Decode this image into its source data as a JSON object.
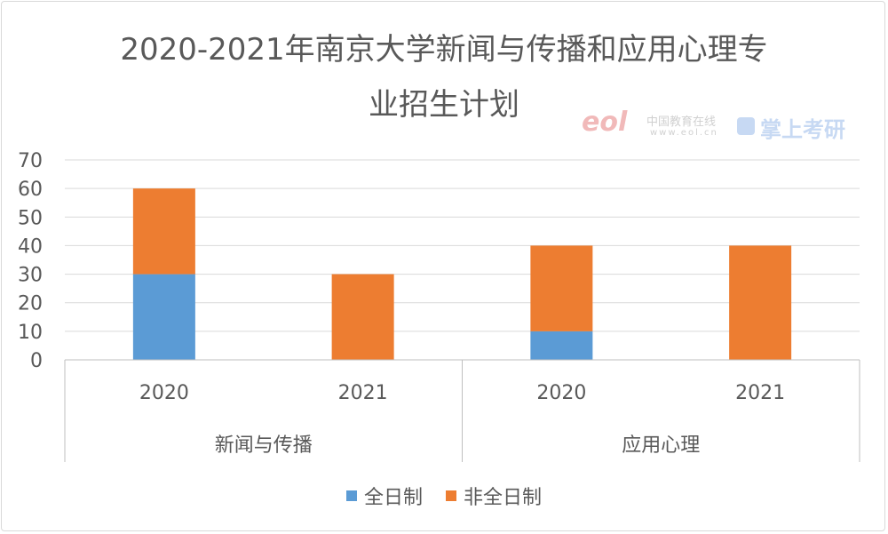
{
  "chart_data": {
    "type": "bar",
    "stacked": true,
    "title": "2020-2021年南京大学新闻与传播和应用心理专业招生计划",
    "title_lines": [
      "2020-2021年南京大学新闻与传播和应用心理专",
      "业招生计划"
    ],
    "groups": [
      {
        "name": "新闻与传播",
        "categories": [
          "2020",
          "2021"
        ]
      },
      {
        "name": "应用心理",
        "categories": [
          "2020",
          "2021"
        ]
      }
    ],
    "categories": [
      "2020",
      "2021",
      "2020",
      "2021"
    ],
    "series": [
      {
        "name": "全日制",
        "color": "#5b9bd5",
        "values": [
          30,
          0,
          10,
          0
        ]
      },
      {
        "name": "非全日制",
        "color": "#ed7d31",
        "values": [
          30,
          30,
          30,
          40
        ]
      }
    ],
    "ylim": [
      0,
      70
    ],
    "yticks": [
      "0",
      "10",
      "20",
      "30",
      "40",
      "50",
      "60",
      "70"
    ],
    "grid": true,
    "legend_position": "bottom"
  },
  "watermark": {
    "eol_logo": "eol",
    "site_name": "中国教育在线",
    "site_url": "www.eol.cn",
    "brand": "掌上考研"
  }
}
